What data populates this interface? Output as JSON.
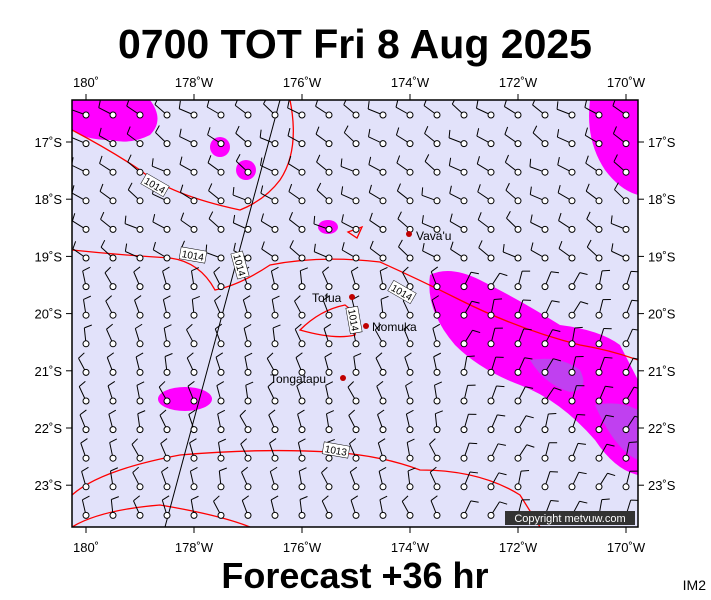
{
  "header": {
    "title": "0700 TOT Fri 8 Aug 2025"
  },
  "map": {
    "lon_labels": [
      "180˚",
      "178˚W",
      "176˚W",
      "174˚W",
      "172˚W",
      "170˚W"
    ],
    "lat_labels": [
      "17˚S",
      "18˚S",
      "19˚S",
      "20˚S",
      "21˚S",
      "22˚S",
      "23˚S"
    ],
    "places": [
      "Vava'u",
      "Tofua",
      "Nomuka",
      "Tongatapu"
    ],
    "isobar_labels": [
      "1014",
      "1014",
      "1014",
      "1014",
      "1014",
      "1013"
    ],
    "copyright": "Copyright metvuw.com"
  },
  "footer": {
    "caption": "Forecast +36 hr",
    "code": "IM2"
  }
}
